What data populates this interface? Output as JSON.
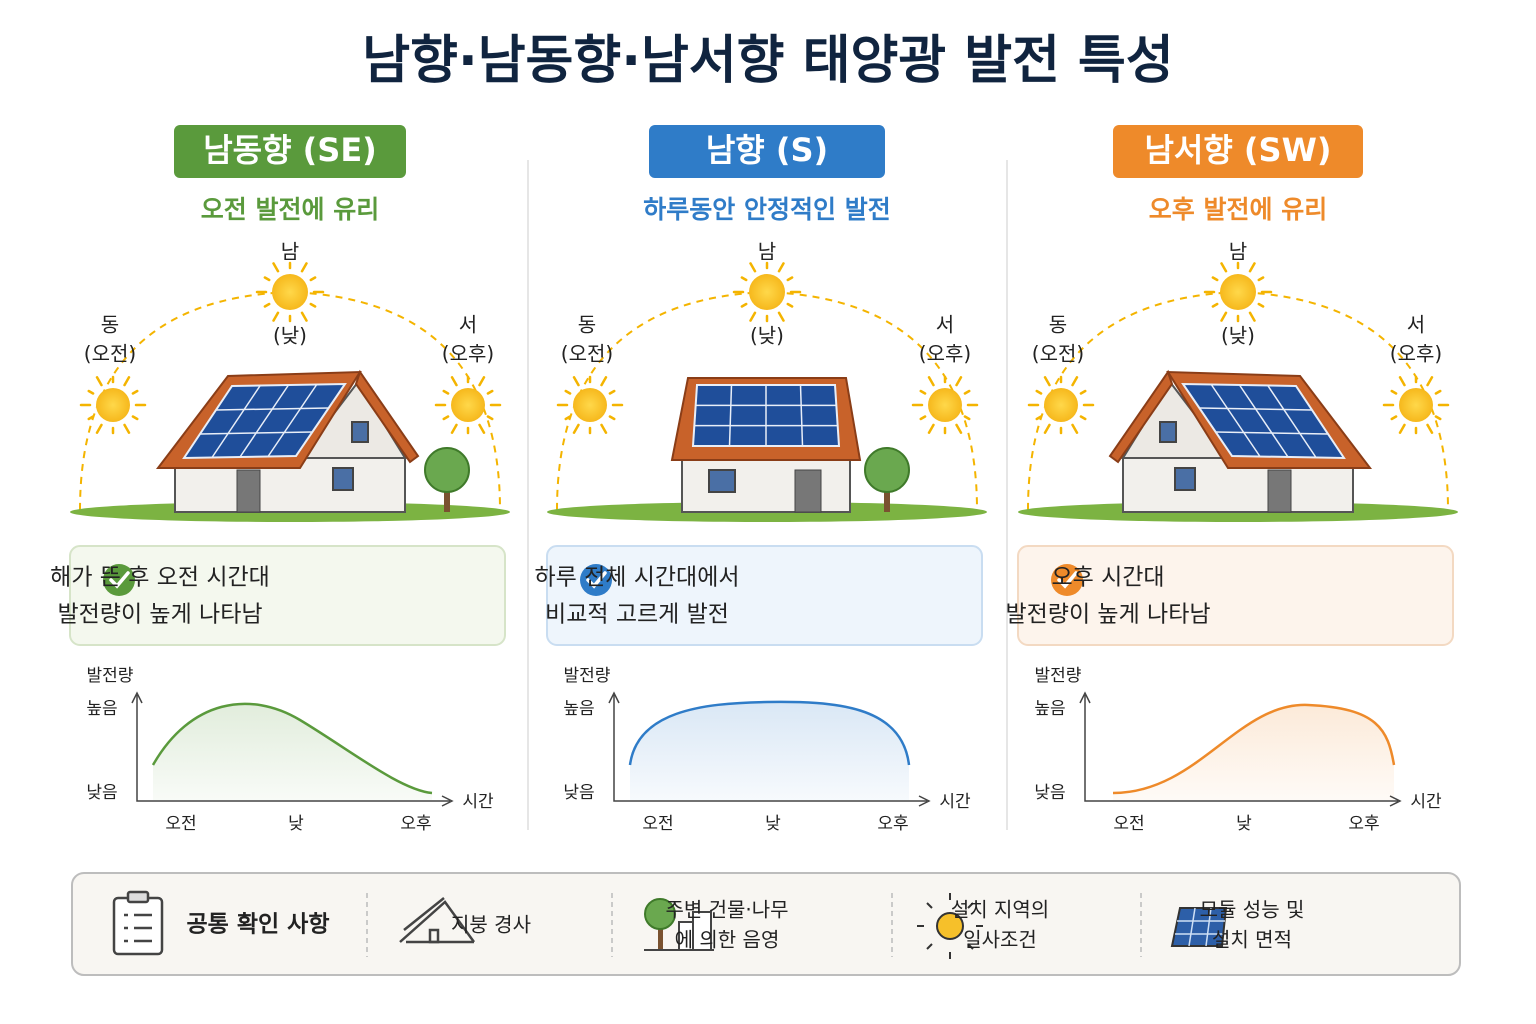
{
  "title": "남향·남동향·남서향 태양광 발전 특성",
  "panels": [
    {
      "badge": "남동향 (SE)",
      "color": "#5a9a3c",
      "light": "#f4f8ee",
      "border": "#d6e4c8",
      "subtitle": "오전 발전에 유리",
      "compass": {
        "south": "남",
        "noon": "(낮)",
        "east": "동",
        "morning": "(오전)",
        "west": "서",
        "afternoon": "(오후)"
      },
      "note": [
        "해가 뜬 후 오전 시간대",
        "발전량이 높게 나타남"
      ],
      "chart": {
        "y_label": "발전량",
        "high": "높음",
        "low": "낮음",
        "x_label": "시간",
        "x_categories": [
          "오전",
          "낮",
          "오후"
        ]
      }
    },
    {
      "badge": "남향 (S)",
      "color": "#2f7cc8",
      "light": "#eef5fc",
      "border": "#c9ddf1",
      "subtitle": "하루동안 안정적인 발전",
      "compass": {
        "south": "남",
        "noon": "(낮)",
        "east": "동",
        "morning": "(오전)",
        "west": "서",
        "afternoon": "(오후)"
      },
      "note": [
        "하루 전체 시간대에서",
        "비교적 고르게 발전"
      ],
      "chart": {
        "y_label": "발전량",
        "high": "높음",
        "low": "낮음",
        "x_label": "시간",
        "x_categories": [
          "오전",
          "낮",
          "오후"
        ]
      }
    },
    {
      "badge": "남서향 (SW)",
      "color": "#ee8a2a",
      "light": "#fdf4ec",
      "border": "#f3d9c2",
      "subtitle": "오후 발전에 유리",
      "compass": {
        "south": "남",
        "noon": "(낮)",
        "east": "동",
        "morning": "(오전)",
        "west": "서",
        "afternoon": "(오후)"
      },
      "note": [
        "오후 시간대",
        "발전량이 높게 나타남"
      ],
      "chart": {
        "y_label": "발전량",
        "high": "높음",
        "low": "낮음",
        "x_label": "시간",
        "x_categories": [
          "오전",
          "낮",
          "오후"
        ]
      }
    }
  ],
  "footer": {
    "label": "공통 확인 사항",
    "items": [
      {
        "lines": [
          "지붕 경사"
        ]
      },
      {
        "lines": [
          "주변 건물·나무",
          "에 의한 음영"
        ]
      },
      {
        "lines": [
          "설치 지역의",
          "일사조건"
        ]
      },
      {
        "lines": [
          "모듈 성능 및",
          "설치 면적"
        ]
      }
    ]
  }
}
